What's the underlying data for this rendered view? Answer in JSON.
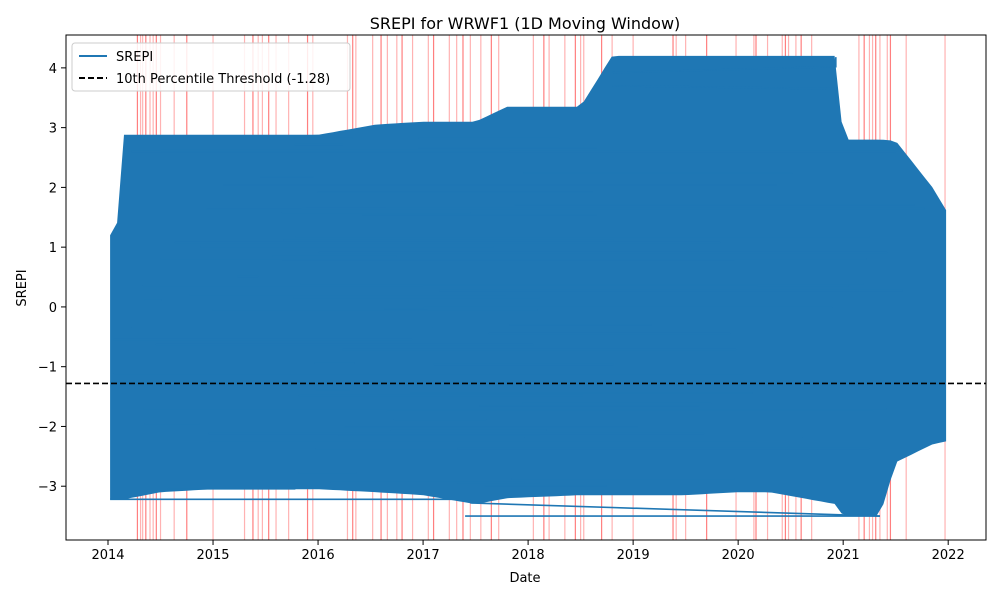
{
  "chart_data": {
    "type": "line",
    "title": "SREPI for WRWF1 (1D Moving Window)",
    "xlabel": "Date",
    "ylabel": "SREPI",
    "xlim": [
      2013.6,
      2022.36
    ],
    "ylim": [
      -3.9,
      4.55
    ],
    "x_ticks": [
      "2014",
      "2015",
      "2016",
      "2017",
      "2018",
      "2019",
      "2020",
      "2021",
      "2022"
    ],
    "y_ticks": [
      "−3",
      "−2",
      "−1",
      "0",
      "1",
      "2",
      "3",
      "4"
    ],
    "y_tick_values": [
      -3,
      -2,
      -1,
      0,
      1,
      2,
      3,
      4
    ],
    "legend": {
      "placement": "top-left",
      "entries": [
        {
          "label": "SREPI",
          "color": "#1f77b4",
          "style": "solid"
        },
        {
          "label": "10th Percentile Threshold (-1.28)",
          "color": "#000000",
          "style": "dashed"
        }
      ]
    },
    "threshold": {
      "name": "10th Percentile Threshold (-1.28)",
      "value": -1.28,
      "color": "#000000"
    },
    "series_color": "#1f77b4",
    "highlight_color": "#ff0000",
    "series": [
      {
        "name": "SREPI",
        "envelope": [
          {
            "x": 2014.02,
            "ymin": -3.22,
            "ymax": 1.2
          },
          {
            "x": 2014.1,
            "ymin": -3.22,
            "ymax": 1.45
          },
          {
            "x": 2014.15,
            "ymin": -3.22,
            "ymax": 2.88
          },
          {
            "x": 2014.5,
            "ymin": -3.1,
            "ymax": 2.88
          },
          {
            "x": 2015.0,
            "ymin": -3.05,
            "ymax": 2.88
          },
          {
            "x": 2016.0,
            "ymin": -3.05,
            "ymax": 2.88
          },
          {
            "x": 2016.55,
            "ymin": -3.1,
            "ymax": 3.05
          },
          {
            "x": 2017.0,
            "ymin": -3.15,
            "ymax": 3.1
          },
          {
            "x": 2017.5,
            "ymin": -3.3,
            "ymax": 3.1
          },
          {
            "x": 2017.8,
            "ymin": -3.2,
            "ymax": 3.35
          },
          {
            "x": 2018.5,
            "ymin": -3.15,
            "ymax": 3.35
          },
          {
            "x": 2018.8,
            "ymin": -3.15,
            "ymax": 4.2
          },
          {
            "x": 2019.5,
            "ymin": -3.15,
            "ymax": 4.2
          },
          {
            "x": 2020.0,
            "ymin": -3.1,
            "ymax": 4.2
          },
          {
            "x": 2020.3,
            "ymin": -3.1,
            "ymax": 4.2
          },
          {
            "x": 2020.93,
            "ymin": -3.3,
            "ymax": 4.2
          },
          {
            "x": 2021.0,
            "ymin": -3.5,
            "ymax": 2.8
          },
          {
            "x": 2021.35,
            "ymin": -3.5,
            "ymax": 2.8
          },
          {
            "x": 2021.5,
            "ymin": -2.6,
            "ymax": 2.78
          },
          {
            "x": 2021.85,
            "ymin": -2.3,
            "ymax": 2.0
          },
          {
            "x": 2021.98,
            "ymin": -2.25,
            "ymax": 1.62
          }
        ],
        "notable_points": [
          {
            "x": 2020.93,
            "y": 4.18
          },
          {
            "x": 2021.35,
            "y": -3.5
          },
          {
            "x": 2014.02,
            "y": -3.22
          }
        ]
      }
    ],
    "drought_events_x": [
      2014.28,
      2014.31,
      2014.33,
      2014.36,
      2014.4,
      2014.43,
      2014.46,
      2014.5,
      2014.63,
      2014.75,
      2015.0,
      2015.3,
      2015.38,
      2015.43,
      2015.47,
      2015.53,
      2015.6,
      2015.72,
      2015.9,
      2015.95,
      2016.28,
      2016.33,
      2016.36,
      2016.52,
      2016.6,
      2016.66,
      2016.75,
      2016.8,
      2016.9,
      2017.05,
      2017.1,
      2017.25,
      2017.32,
      2017.38,
      2017.45,
      2017.55,
      2017.65,
      2017.72,
      2018.05,
      2018.15,
      2018.2,
      2018.35,
      2018.45,
      2018.5,
      2018.53,
      2018.7,
      2018.8,
      2019.0,
      2019.38,
      2019.41,
      2019.5,
      2019.7,
      2019.98,
      2020.15,
      2020.17,
      2020.28,
      2020.42,
      2020.45,
      2020.48,
      2020.55,
      2020.6,
      2020.7,
      2021.15,
      2021.2,
      2021.25,
      2021.28,
      2021.31,
      2021.35,
      2021.42,
      2021.45,
      2021.6,
      2021.97
    ]
  }
}
